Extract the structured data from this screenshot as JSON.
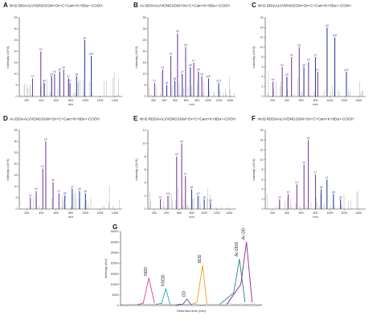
{
  "chart_data": [
    {
      "type": "bar",
      "panel": "A",
      "title": "NH2-DDIAALVVDNGSGM+Ox+C+Cam+K+8Da+-COOH",
      "xlabel": "m/z",
      "ylabel": "Intensity (10^3)",
      "xlim": [
        100,
        1500
      ],
      "ylim": [
        0,
        35
      ],
      "xticks": [
        "200",
        "400",
        "600",
        "800",
        "1000",
        "1200",
        "1400"
      ],
      "yticks": [
        "0",
        "5",
        "10",
        "15",
        "20",
        "25",
        "30",
        "35"
      ],
      "series": [
        {
          "name": "b",
          "color": "#7a3fa0",
          "x": [
            280,
            393,
            580,
            705,
            790
          ],
          "values": [
            8,
            20,
            10,
            12,
            6
          ],
          "labels": [
            "b2",
            "b3",
            "b5",
            "b6",
            "b7"
          ]
        },
        {
          "name": "y",
          "color": "#2e3f9e",
          "x": [
            440,
            540,
            650,
            770,
            880,
            990,
            1080
          ],
          "values": [
            6,
            9,
            11,
            8,
            9,
            25,
            18
          ],
          "labels": [
            "y4",
            "y5",
            "y6",
            "y7",
            "y8",
            "y9",
            "y10"
          ]
        }
      ]
    },
    {
      "type": "bar",
      "panel": "B",
      "title": "Ac-DDIAALVVDNGSGM+Ox+C+Cam+K+8Da+-COOH",
      "xlabel": "m/z",
      "ylabel": "Intensity (10^3)",
      "xlim": [
        200,
        1500
      ],
      "ylim": [
        0,
        35
      ],
      "xticks": [
        "300",
        "400",
        "500",
        "600",
        "800",
        "1000",
        "1200",
        "1400"
      ],
      "yticks": [
        "0",
        "5",
        "10",
        "15",
        "20",
        "25",
        "30",
        "35"
      ],
      "series": [
        {
          "name": "b",
          "color": "#7a3fa0",
          "x": [
            300,
            420,
            540,
            640,
            760,
            880,
            1000
          ],
          "values": [
            6,
            12,
            18,
            28,
            22,
            15,
            9
          ],
          "labels": [
            "b2",
            "b3",
            "b4",
            "b5",
            "b6",
            "b7",
            "b8"
          ]
        },
        {
          "name": "y",
          "color": "#2e3f9e",
          "x": [
            480,
            600,
            710,
            830,
            950,
            1100,
            1250
          ],
          "values": [
            5,
            7,
            10,
            13,
            11,
            8,
            6
          ],
          "labels": [
            "y5",
            "y6",
            "y7",
            "y8",
            "y9",
            "y10",
            "y13"
          ]
        }
      ]
    },
    {
      "type": "bar",
      "panel": "C",
      "title": "NH2-DDIAALVVDNGSGM+Ox+C+Cam+K+8Da+-COOH",
      "xlabel": "m/z",
      "ylabel": "Intensity (10^3)",
      "xlim": [
        200,
        1500
      ],
      "ylim": [
        0,
        16
      ],
      "xticks": [
        "200",
        "400",
        "600",
        "800",
        "1000",
        "1200",
        "1400"
      ],
      "yticks": [
        "0",
        "2",
        "4",
        "6",
        "8",
        "10",
        "12",
        "14",
        "16"
      ],
      "series": [
        {
          "name": "b",
          "color": "#7a3fa0",
          "x": [
            300,
            420,
            540,
            640,
            760,
            880
          ],
          "values": [
            3,
            6,
            8,
            10,
            7,
            5
          ],
          "labels": [
            "b2",
            "b3",
            "b4",
            "b5",
            "b6",
            "b7"
          ]
        },
        {
          "name": "y",
          "color": "#2e3f9e",
          "x": [
            480,
            700,
            850,
            1000,
            1100,
            1250
          ],
          "values": [
            4,
            6,
            8,
            14,
            12,
            5
          ],
          "labels": [
            "y5",
            "y6",
            "y7",
            "y9",
            "y10",
            "y12"
          ]
        }
      ]
    },
    {
      "type": "bar",
      "panel": "D",
      "title": "Ac-DDIAALVVDNGSGM+Ox+C+Cam+K+8Da+-COOH",
      "xlabel": "m/z",
      "ylabel": "Intensity (10^3)",
      "xlim": [
        100,
        1500
      ],
      "ylim": [
        0,
        35
      ],
      "xticks": [
        "200",
        "400",
        "600",
        "800",
        "1000",
        "1200",
        "1400"
      ],
      "yticks": [
        "0",
        "5",
        "10",
        "15",
        "20",
        "25",
        "30",
        "35"
      ],
      "series": [
        {
          "name": "b",
          "color": "#7a3fa0",
          "x": [
            250,
            330,
            420,
            460,
            560,
            640
          ],
          "values": [
            5,
            8,
            18,
            30,
            12,
            7
          ],
          "labels": [
            "b2",
            "b3",
            "b4",
            "b5",
            "b6",
            "b7"
          ]
        },
        {
          "name": "y",
          "color": "#2e3f9e",
          "x": [
            720,
            820,
            920,
            1000
          ],
          "values": [
            6,
            9,
            8,
            7
          ],
          "labels": [
            "y6",
            "y7",
            "y8",
            "y9"
          ]
        }
      ]
    },
    {
      "type": "bar",
      "panel": "E",
      "title": "NH2-RDDIAALVVDNGSGM+Ox+C+Cam+K+8Da+-COOH",
      "xlabel": "m/z",
      "ylabel": "Intensity (10^3)",
      "xlim": [
        100,
        1500
      ],
      "ylim": [
        0,
        12
      ],
      "xticks": [
        "200",
        "400",
        "600",
        "800",
        "1000",
        "1200",
        "1400"
      ],
      "yticks": [
        "0",
        "2",
        "4",
        "6",
        "8",
        "10",
        "12"
      ],
      "series": [
        {
          "name": "b",
          "color": "#7a3fa0",
          "x": [
            300,
            420,
            560,
            640,
            700
          ],
          "values": [
            1.5,
            2,
            8,
            10,
            5
          ],
          "labels": [
            "b2",
            "b3",
            "b5",
            "b6",
            "b7"
          ]
        },
        {
          "name": "y",
          "color": "#2e3f9e",
          "x": [
            800,
            900,
            1000,
            1100
          ],
          "values": [
            3,
            2,
            1.5,
            1
          ],
          "labels": [
            "y6",
            "y7",
            "y8",
            "y9"
          ]
        }
      ]
    },
    {
      "type": "bar",
      "panel": "F",
      "title": "NH2-RDDIAALVVDNGSGM+Ox+C+Cam+K+8Da+-COOH",
      "xlabel": "m/z",
      "ylabel": "Intensity (10^3)",
      "xlim": [
        100,
        1500
      ],
      "ylim": [
        0,
        16
      ],
      "xticks": [
        "200",
        "400",
        "600",
        "800",
        "1000",
        "1200",
        "1400"
      ],
      "yticks": [
        "0",
        "2",
        "4",
        "6",
        "8",
        "10",
        "12",
        "14",
        "16"
      ],
      "series": [
        {
          "name": "b",
          "color": "#7a3fa0",
          "x": [
            300,
            420,
            540,
            640,
            700,
            800
          ],
          "values": [
            2,
            3,
            5,
            9,
            14,
            7
          ],
          "labels": [
            "b2",
            "b3",
            "b4",
            "b5",
            "b6",
            "b7"
          ]
        },
        {
          "name": "y",
          "color": "#2e3f9e",
          "x": [
            880,
            960,
            1050,
            1150
          ],
          "values": [
            4,
            6,
            3,
            2
          ],
          "labels": [
            "y6",
            "y7",
            "y8",
            "y9"
          ]
        }
      ]
    },
    {
      "type": "line",
      "panel": "G",
      "title": "",
      "xlabel": "Retention time (min)",
      "ylabel": "Intensity (AU)",
      "xlim": [
        0,
        10
      ],
      "ylim": [
        0,
        35000
      ],
      "yticks": [
        "0",
        "5000",
        "10000",
        "15000",
        "20000",
        "25000",
        "30000",
        "35000"
      ],
      "series": [
        {
          "name": "NDD",
          "color": "#e0409a",
          "x": [
            1.2,
            1.6,
            2.0,
            2.4
          ],
          "values": [
            500,
            1000,
            13000,
            1000
          ]
        },
        {
          "name": "RDDD",
          "color": "#17a6c9",
          "x": [
            2.5,
            2.9,
            3.2,
            3.5
          ],
          "values": [
            500,
            1000,
            8000,
            500
          ]
        },
        {
          "name": "DD",
          "color": "#6a3fa0",
          "x": [
            3.9,
            4.4,
            4.7,
            5.0
          ],
          "values": [
            300,
            600,
            3000,
            300
          ]
        },
        {
          "name": "BDD",
          "color": "#f39a1f",
          "x": [
            5.0,
            5.4,
            5.8,
            6.1
          ],
          "values": [
            500,
            1500,
            19000,
            800
          ]
        },
        {
          "name": "Ac-DDD",
          "color": "#1b8a8a",
          "x": [
            7.0,
            8.0,
            8.4,
            8.8
          ],
          "values": [
            500,
            6000,
            22000,
            1500
          ]
        },
        {
          "name": "Ac-DD",
          "color": "#8a2890",
          "x": [
            7.5,
            8.5,
            8.9,
            9.3
          ],
          "values": [
            500,
            10000,
            30000,
            1500
          ]
        }
      ],
      "peak_labels": [
        "NDD",
        "RDDD",
        "DD",
        "BDD",
        "Ac-DDD",
        "Ac-DD"
      ]
    }
  ]
}
